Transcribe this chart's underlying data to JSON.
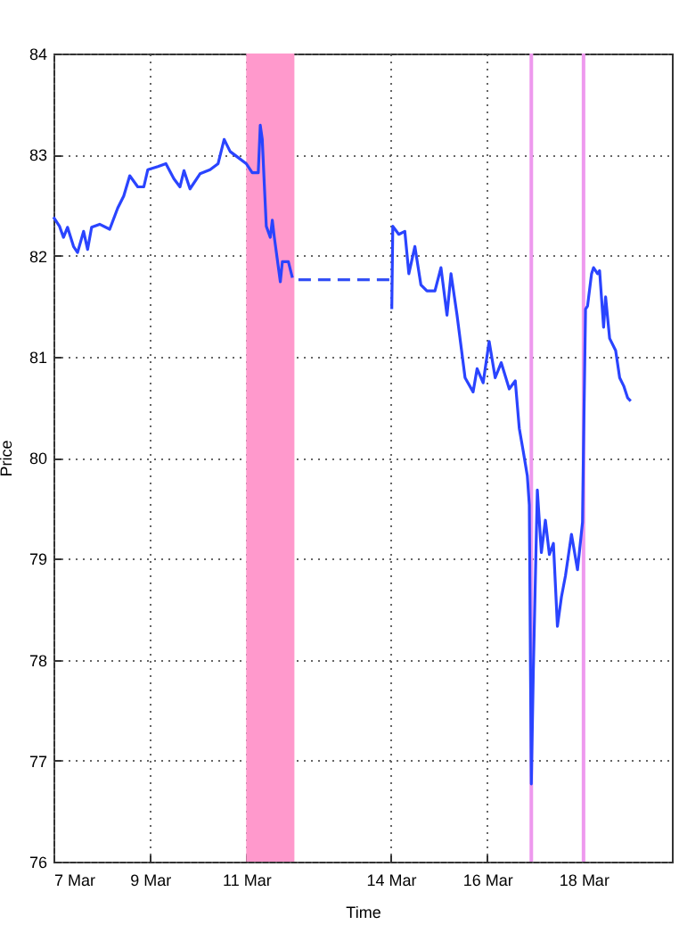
{
  "chart_data": {
    "type": "line",
    "xlabel": "Time",
    "ylabel": "Price",
    "xlim": [
      "--03-07T00:00",
      "--03-19T20:00"
    ],
    "ylim": [
      76,
      84
    ],
    "xticks": [
      {
        "value": "--03-07",
        "label": "7 Mar"
      },
      {
        "value": "--03-09",
        "label": "9 Mar"
      },
      {
        "value": "--03-11",
        "label": "11 Mar"
      },
      {
        "value": "--03-14",
        "label": "14 Mar"
      },
      {
        "value": "--03-16",
        "label": "16 Mar"
      },
      {
        "value": "--03-18",
        "label": "18 Mar"
      }
    ],
    "yticks": [
      76,
      77,
      78,
      79,
      80,
      81,
      82,
      83,
      84
    ],
    "grid": true,
    "bands": [
      {
        "axis": "x",
        "from": "--03-11T00:00",
        "to": "--03-12T00:00",
        "color": "#ff99cc"
      }
    ],
    "ref_lines": [
      {
        "axis": "x",
        "value": "--03-16T22:00",
        "color": "#ee99ee",
        "line_style": "solid"
      },
      {
        "axis": "x",
        "value": "--03-18T00:00",
        "color": "#ee99ee",
        "line_style": "solid"
      }
    ],
    "series": [
      {
        "color": "#2a44ff",
        "line_style": "solid",
        "x": [
          "--03-07T00:00",
          "--03-07T03:00",
          "--03-07T05:00",
          "--03-07T07:00",
          "--03-07T10:00",
          "--03-07T12:00",
          "--03-07T15:00",
          "--03-07T17:00",
          "--03-07T19:00",
          "--03-07T23:00",
          "--03-08T04:00",
          "--03-08T08:00",
          "--03-08T11:00",
          "--03-08T14:00",
          "--03-08T18:00",
          "--03-08T21:00",
          "--03-08T23:00",
          "--03-09T04:00",
          "--03-09T08:00",
          "--03-09T12:00",
          "--03-09T15:00",
          "--03-09T17:00",
          "--03-09T20:00",
          "--03-10T01:00",
          "--03-10T06:00",
          "--03-10T10:00",
          "--03-10T13:00",
          "--03-10T16:00",
          "--03-10T20:00",
          "--03-11T00:00",
          "--03-11T03:00",
          "--03-11T06:00",
          "--03-11T07:00",
          "--03-11T08:00",
          "--03-11T09:00",
          "--03-11T10:00",
          "--03-11T12:00",
          "--03-11T13:00",
          "--03-11T14:00",
          "--03-11T17:00",
          "--03-11T18:00",
          "--03-11T21:00",
          "--03-11T23:00",
          "--03-14T00:00",
          "--03-14T00:30",
          "--03-14T01:00",
          "--03-14T04:00",
          "--03-14T07:00",
          "--03-14T09:00",
          "--03-14T12:00",
          "--03-14T15:00",
          "--03-14T18:00",
          "--03-14T22:00",
          "--03-15T01:00",
          "--03-15T04:00",
          "--03-15T06:00",
          "--03-15T09:00",
          "--03-15T13:00",
          "--03-15T17:00",
          "--03-15T19:00",
          "--03-15T22:00",
          "--03-16T01:00",
          "--03-16T04:00",
          "--03-16T07:00",
          "--03-16T11:00",
          "--03-16T14:00",
          "--03-16T16:00",
          "--03-16T18:00",
          "--03-16T20:00",
          "--03-16T21:00",
          "--03-16T22:00",
          "--03-16T23:00",
          "--03-17T01:00",
          "--03-17T03:00",
          "--03-17T05:00",
          "--03-17T07:00",
          "--03-17T09:00",
          "--03-17T11:00",
          "--03-17T13:00",
          "--03-17T15:00",
          "--03-17T18:00",
          "--03-17T21:00",
          "--03-17T23:30",
          "--03-18T00:00",
          "--03-18T01:00",
          "--03-18T02:00",
          "--03-18T04:00",
          "--03-18T05:00",
          "--03-18T07:00",
          "--03-18T08:00",
          "--03-18T10:00",
          "--03-18T11:00",
          "--03-18T13:00",
          "--03-18T16:00",
          "--03-18T18:00",
          "--03-18T20:00",
          "--03-18T22:00",
          "--03-18T23:30"
        ],
        "values": [
          82.38,
          82.29,
          82.18,
          82.28,
          82.09,
          82.03,
          82.24,
          82.06,
          82.28,
          82.31,
          82.26,
          82.47,
          82.59,
          82.79,
          82.68,
          82.68,
          82.85,
          82.88,
          82.91,
          82.76,
          82.68,
          82.84,
          82.66,
          82.81,
          82.85,
          82.91,
          83.15,
          83.03,
          82.97,
          82.91,
          82.82,
          82.82,
          83.29,
          83.15,
          82.71,
          82.29,
          82.18,
          82.35,
          82.18,
          81.74,
          81.94,
          81.94,
          81.78,
          null,
          81.47,
          82.29,
          82.21,
          82.24,
          81.82,
          82.09,
          81.71,
          81.65,
          81.65,
          81.88,
          81.41,
          81.82,
          81.41,
          80.79,
          80.65,
          80.88,
          80.74,
          81.15,
          80.79,
          80.94,
          80.68,
          80.76,
          80.29,
          80.06,
          79.82,
          79.53,
          76.77,
          77.89,
          79.68,
          79.06,
          79.38,
          79.04,
          79.15,
          78.33,
          78.62,
          78.83,
          79.24,
          78.89,
          79.36,
          80.12,
          81.47,
          81.5,
          81.82,
          81.88,
          81.82,
          81.85,
          81.29,
          81.59,
          81.18,
          81.06,
          80.79,
          80.71,
          80.59,
          80.56
        ]
      },
      {
        "color": "#3350f5",
        "line_style": "dashed",
        "x": [
          "--03-12T02:00",
          "--03-13T00:00",
          "--03-14T00:00"
        ],
        "values": [
          81.76,
          81.76,
          81.76
        ]
      }
    ]
  }
}
